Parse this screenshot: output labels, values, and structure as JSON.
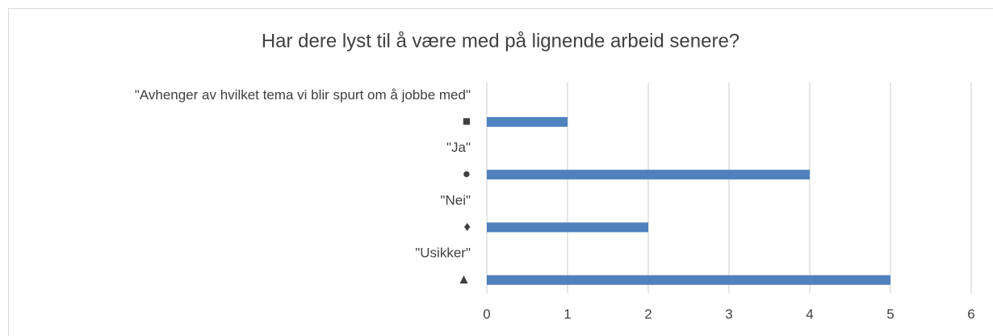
{
  "chart_data": {
    "type": "bar",
    "orientation": "horizontal",
    "title": "Har dere lyst til å være med på lignende arbeid senere?",
    "categories": [
      "\"Avhenger av hvilket tema vi blir spurt om å jobbe med\"",
      "■",
      "\"Ja\"",
      "●",
      "\"Nei\"",
      "♦",
      "\"Usikker\"",
      "▲"
    ],
    "values": [
      null,
      1,
      null,
      4,
      null,
      2,
      null,
      5
    ],
    "color": "#4f81bd",
    "xlim": [
      0,
      6
    ],
    "xticks": [
      0,
      1,
      2,
      3,
      4,
      5,
      6
    ],
    "grid": true
  }
}
